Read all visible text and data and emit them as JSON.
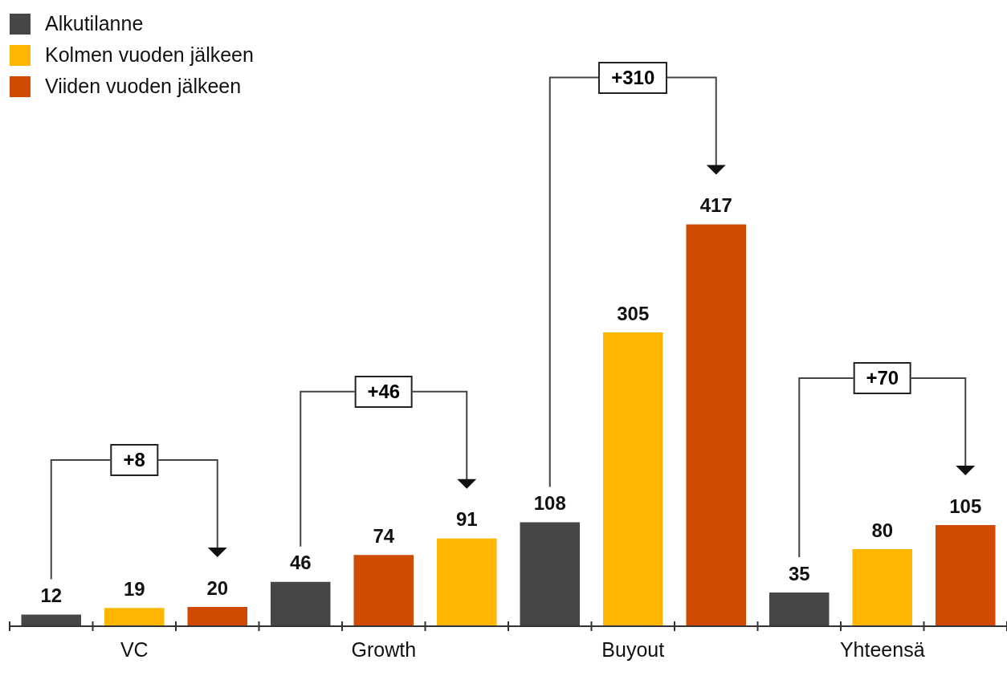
{
  "chart_data": {
    "type": "bar",
    "categories": [
      "VC",
      "Growth",
      "Buyout",
      "Yhteensä"
    ],
    "series": [
      {
        "name": "Alkutilanne",
        "color": "#464646",
        "values": [
          12,
          46,
          108,
          35
        ]
      },
      {
        "name": "Kolmen vuoden jälkeen",
        "color": "#ffb600",
        "colors": [
          "#ffb600",
          "#d04a02",
          "#ffb600",
          "#ffb600"
        ],
        "values": [
          19,
          74,
          305,
          80
        ]
      },
      {
        "name": "Viiden vuoden jälkeen",
        "color": "#d04a02",
        "colors": [
          "#d04a02",
          "#ffb600",
          "#d04a02",
          "#d04a02"
        ],
        "values": [
          20,
          91,
          417,
          105
        ]
      }
    ],
    "data_labels": true,
    "legend": "top left",
    "tick_labels": "x",
    "grid": false,
    "annotations": [
      "+8",
      "+46",
      "+310",
      "+70"
    ]
  }
}
